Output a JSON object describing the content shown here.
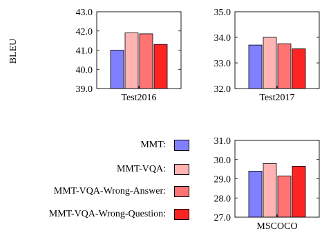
{
  "ylabel": "BLEU",
  "legend": [
    {
      "label": "MMT:",
      "color": "#8080ff"
    },
    {
      "label": "MMT-VQA:",
      "color": "#ffb3b3"
    },
    {
      "label": "MMT-VQA-Wrong-Answer:",
      "color": "#ff7373"
    },
    {
      "label": "MMT-VQA-Wrong-Question:",
      "color": "#ff2424"
    }
  ],
  "chart_data": [
    {
      "type": "bar",
      "categories": [
        "Test2016"
      ],
      "series": [
        {
          "name": "MMT",
          "values": [
            41.0
          ]
        },
        {
          "name": "MMT-VQA",
          "values": [
            41.9
          ]
        },
        {
          "name": "MMT-VQA-Wrong-Answer",
          "values": [
            41.85
          ]
        },
        {
          "name": "MMT-VQA-Wrong-Question",
          "values": [
            41.3
          ]
        }
      ],
      "ylabel": "BLEU",
      "ylim": [
        39.0,
        43.0
      ],
      "yticks": [
        "39.0",
        "40.0",
        "41.0",
        "42.0",
        "43.0"
      ],
      "xlabel": "Test2016"
    },
    {
      "type": "bar",
      "categories": [
        "Test2017"
      ],
      "series": [
        {
          "name": "MMT",
          "values": [
            33.7
          ]
        },
        {
          "name": "MMT-VQA",
          "values": [
            34.0
          ]
        },
        {
          "name": "MMT-VQA-Wrong-Answer",
          "values": [
            33.75
          ]
        },
        {
          "name": "MMT-VQA-Wrong-Question",
          "values": [
            33.55
          ]
        }
      ],
      "ylim": [
        32.0,
        35.0
      ],
      "yticks": [
        "32.0",
        "33.0",
        "34.0",
        "35.0"
      ],
      "xlabel": "Test2017"
    },
    {
      "type": "bar",
      "categories": [
        "MSCOCO"
      ],
      "series": [
        {
          "name": "MMT",
          "values": [
            29.4
          ]
        },
        {
          "name": "MMT-VQA",
          "values": [
            29.8
          ]
        },
        {
          "name": "MMT-VQA-Wrong-Answer",
          "values": [
            29.15
          ]
        },
        {
          "name": "MMT-VQA-Wrong-Question",
          "values": [
            29.65
          ]
        }
      ],
      "ylim": [
        27.0,
        31.0
      ],
      "yticks": [
        "27.0",
        "28.0",
        "29.0",
        "30.0",
        "31.0"
      ],
      "xlabel": "MSCOCO"
    }
  ]
}
